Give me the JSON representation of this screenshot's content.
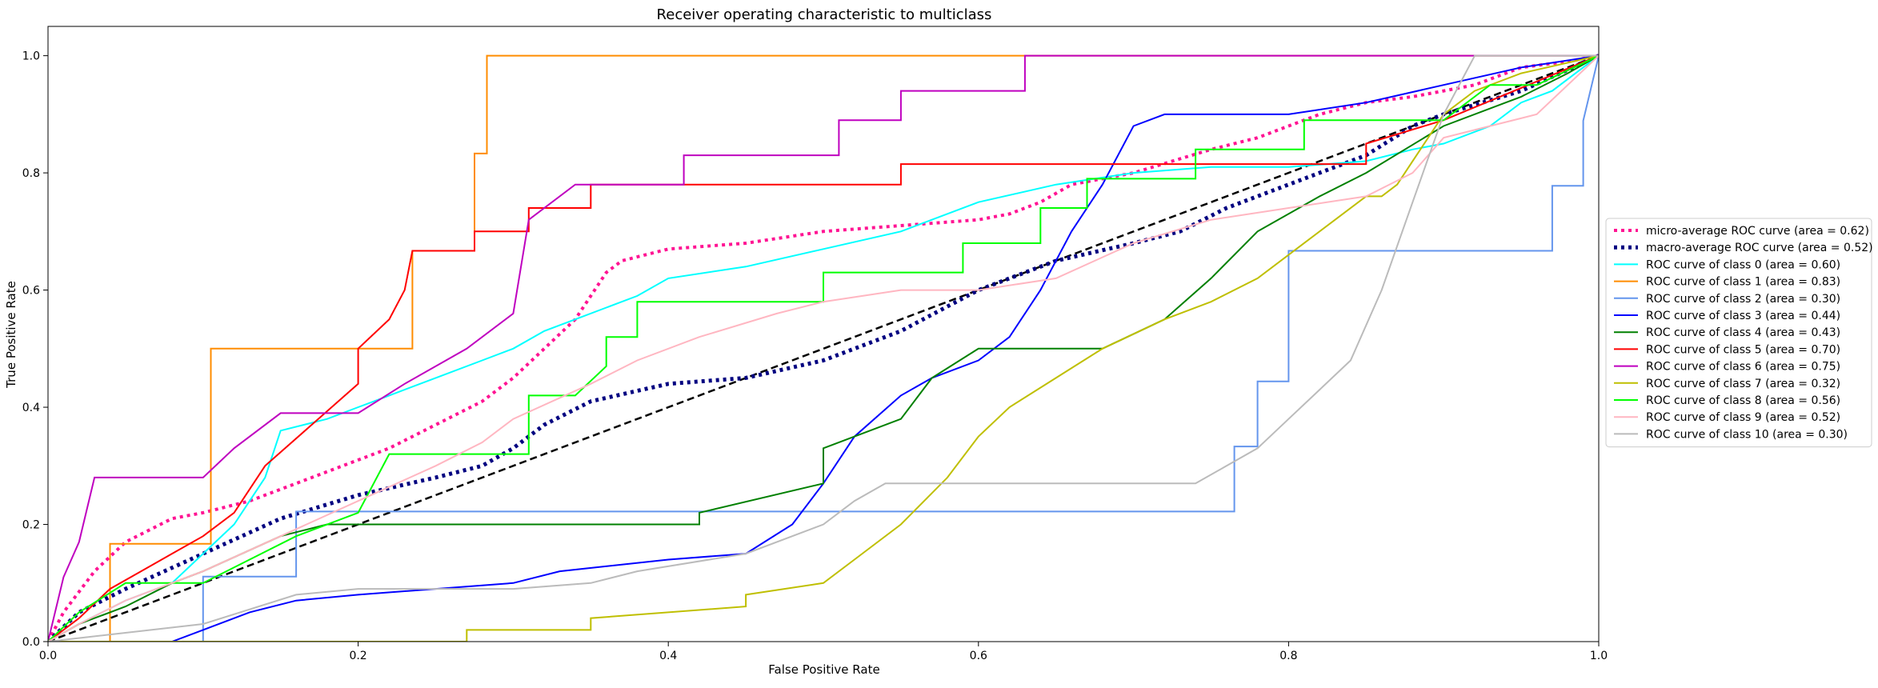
{
  "chart_data": {
    "type": "line",
    "title": "Receiver operating characteristic to multiclass",
    "xlabel": "False Positive Rate",
    "ylabel": "True Positive Rate",
    "xlim": [
      0.0,
      1.0
    ],
    "ylim": [
      0.0,
      1.05
    ],
    "x_ticks": [
      "0.0",
      "0.2",
      "0.4",
      "0.6",
      "0.8",
      "1.0"
    ],
    "y_ticks": [
      "0.0",
      "0.2",
      "0.4",
      "0.6",
      "0.8",
      "1.0"
    ],
    "grid": false,
    "legend_position": "center-right-outside",
    "chance_line": {
      "x": [
        0,
        1
      ],
      "y": [
        0,
        1
      ],
      "color": "#000000",
      "style": "dashed"
    },
    "series": [
      {
        "name": "micro-average ROC curve (area = 0.62)",
        "color": "#ff1493",
        "style": "dotted",
        "width": 4,
        "x": [
          0,
          0.01,
          0.03,
          0.05,
          0.08,
          0.1,
          0.13,
          0.16,
          0.19,
          0.22,
          0.25,
          0.28,
          0.3,
          0.32,
          0.34,
          0.36,
          0.37,
          0.4,
          0.45,
          0.5,
          0.55,
          0.6,
          0.62,
          0.64,
          0.66,
          0.7,
          0.75,
          0.78,
          0.8,
          0.82,
          0.85,
          0.88,
          0.9,
          0.92,
          0.95,
          0.98,
          1.0
        ],
        "y": [
          0,
          0.05,
          0.12,
          0.17,
          0.21,
          0.22,
          0.24,
          0.27,
          0.3,
          0.33,
          0.37,
          0.41,
          0.45,
          0.5,
          0.55,
          0.63,
          0.65,
          0.67,
          0.68,
          0.7,
          0.71,
          0.72,
          0.73,
          0.75,
          0.78,
          0.8,
          0.84,
          0.86,
          0.88,
          0.9,
          0.92,
          0.93,
          0.94,
          0.95,
          0.98,
          0.99,
          1.0
        ]
      },
      {
        "name": "macro-average ROC curve (area = 0.52)",
        "color": "#000080",
        "style": "dotted",
        "width": 5,
        "x": [
          0,
          0.02,
          0.05,
          0.1,
          0.15,
          0.2,
          0.25,
          0.28,
          0.3,
          0.32,
          0.35,
          0.4,
          0.45,
          0.5,
          0.55,
          0.6,
          0.65,
          0.7,
          0.73,
          0.76,
          0.8,
          0.85,
          0.88,
          0.9,
          0.95,
          1.0
        ],
        "y": [
          0,
          0.05,
          0.09,
          0.15,
          0.21,
          0.25,
          0.28,
          0.3,
          0.33,
          0.37,
          0.41,
          0.44,
          0.45,
          0.48,
          0.53,
          0.6,
          0.65,
          0.68,
          0.7,
          0.74,
          0.78,
          0.83,
          0.88,
          0.9,
          0.94,
          1.0
        ]
      },
      {
        "name": "ROC curve of class 0 (area = 0.60)",
        "color": "#00ffff",
        "style": "solid",
        "width": 2,
        "x": [
          0,
          0.02,
          0.05,
          0.08,
          0.1,
          0.12,
          0.14,
          0.15,
          0.18,
          0.2,
          0.22,
          0.25,
          0.28,
          0.3,
          0.32,
          0.34,
          0.36,
          0.38,
          0.4,
          0.45,
          0.5,
          0.55,
          0.6,
          0.65,
          0.7,
          0.75,
          0.8,
          0.85,
          0.88,
          0.9,
          0.93,
          0.95,
          0.97,
          1.0
        ],
        "y": [
          0,
          0.03,
          0.07,
          0.1,
          0.15,
          0.2,
          0.28,
          0.36,
          0.38,
          0.4,
          0.42,
          0.45,
          0.48,
          0.5,
          0.53,
          0.55,
          0.57,
          0.59,
          0.62,
          0.64,
          0.67,
          0.7,
          0.75,
          0.78,
          0.8,
          0.81,
          0.81,
          0.82,
          0.84,
          0.85,
          0.88,
          0.92,
          0.94,
          1.0
        ]
      },
      {
        "name": "ROC curve of class 1 (area = 0.83)",
        "color": "#ff8c00",
        "style": "solid",
        "width": 2,
        "x": [
          0,
          0.04,
          0.04,
          0.105,
          0.105,
          0.235,
          0.235,
          0.275,
          0.275,
          0.283,
          0.283,
          1.0
        ],
        "y": [
          0,
          0,
          0.167,
          0.167,
          0.5,
          0.5,
          0.667,
          0.667,
          0.833,
          0.833,
          1.0,
          1.0
        ]
      },
      {
        "name": "ROC curve of class 2 (area = 0.30)",
        "color": "#6495ed",
        "style": "solid",
        "width": 2,
        "x": [
          0,
          0.1,
          0.1,
          0.16,
          0.16,
          0.765,
          0.765,
          0.78,
          0.78,
          0.8,
          0.8,
          0.97,
          0.97,
          0.99,
          0.99,
          1.0
        ],
        "y": [
          0,
          0,
          0.111,
          0.111,
          0.222,
          0.222,
          0.333,
          0.333,
          0.444,
          0.444,
          0.667,
          0.667,
          0.778,
          0.778,
          0.889,
          1.0
        ]
      },
      {
        "name": "ROC curve of class 3 (area = 0.44)",
        "color": "#0000ff",
        "style": "solid",
        "width": 2,
        "x": [
          0,
          0.08,
          0.1,
          0.13,
          0.16,
          0.2,
          0.25,
          0.3,
          0.33,
          0.4,
          0.45,
          0.48,
          0.5,
          0.52,
          0.55,
          0.57,
          0.6,
          0.62,
          0.64,
          0.66,
          0.68,
          0.7,
          0.72,
          0.75,
          0.8,
          0.85,
          0.9,
          0.95,
          1.0
        ],
        "y": [
          0,
          0,
          0.02,
          0.05,
          0.07,
          0.08,
          0.09,
          0.1,
          0.12,
          0.14,
          0.15,
          0.2,
          0.27,
          0.35,
          0.42,
          0.45,
          0.48,
          0.52,
          0.6,
          0.7,
          0.78,
          0.88,
          0.9,
          0.9,
          0.9,
          0.92,
          0.95,
          0.98,
          1.0
        ]
      },
      {
        "name": "ROC curve of class 4 (area = 0.43)",
        "color": "#008000",
        "style": "solid",
        "width": 2,
        "x": [
          0,
          0.02,
          0.05,
          0.08,
          0.1,
          0.15,
          0.18,
          0.2,
          0.42,
          0.42,
          0.5,
          0.5,
          0.55,
          0.57,
          0.6,
          0.65,
          0.68,
          0.72,
          0.75,
          0.78,
          0.82,
          0.85,
          0.9,
          0.95,
          0.98,
          1.0
        ],
        "y": [
          0,
          0.03,
          0.06,
          0.1,
          0.12,
          0.18,
          0.2,
          0.2,
          0.2,
          0.22,
          0.27,
          0.33,
          0.38,
          0.45,
          0.5,
          0.5,
          0.5,
          0.55,
          0.62,
          0.7,
          0.76,
          0.8,
          0.88,
          0.93,
          0.97,
          1.0
        ]
      },
      {
        "name": "ROC curve of class 5 (area = 0.70)",
        "color": "#ff0000",
        "style": "solid",
        "width": 2,
        "x": [
          0,
          0.02,
          0.04,
          0.06,
          0.08,
          0.1,
          0.12,
          0.14,
          0.17,
          0.2,
          0.2,
          0.22,
          0.23,
          0.235,
          0.275,
          0.275,
          0.31,
          0.31,
          0.35,
          0.35,
          0.55,
          0.55,
          0.85,
          0.85,
          0.9,
          1.0
        ],
        "y": [
          0,
          0.04,
          0.09,
          0.12,
          0.15,
          0.18,
          0.22,
          0.3,
          0.37,
          0.44,
          0.5,
          0.55,
          0.6,
          0.667,
          0.667,
          0.7,
          0.7,
          0.74,
          0.74,
          0.78,
          0.78,
          0.815,
          0.815,
          0.85,
          0.89,
          1.0
        ]
      },
      {
        "name": "ROC curve of class 6 (area = 0.75)",
        "color": "#bf00bf",
        "style": "solid",
        "width": 2,
        "x": [
          0,
          0.01,
          0.02,
          0.03,
          0.05,
          0.1,
          0.12,
          0.15,
          0.2,
          0.23,
          0.27,
          0.3,
          0.31,
          0.34,
          0.41,
          0.41,
          0.51,
          0.51,
          0.55,
          0.55,
          0.63,
          0.63,
          0.87,
          0.87,
          0.9,
          1.0
        ],
        "y": [
          0,
          0.11,
          0.17,
          0.28,
          0.28,
          0.28,
          0.33,
          0.39,
          0.39,
          0.44,
          0.5,
          0.56,
          0.72,
          0.78,
          0.78,
          0.83,
          0.83,
          0.89,
          0.89,
          0.94,
          0.94,
          1.0,
          1.0,
          1.0,
          1.0,
          1.0
        ]
      },
      {
        "name": "ROC curve of class 7 (area = 0.32)",
        "color": "#bfbf00",
        "style": "solid",
        "width": 2,
        "x": [
          0,
          0.27,
          0.27,
          0.35,
          0.35,
          0.45,
          0.45,
          0.5,
          0.52,
          0.55,
          0.58,
          0.6,
          0.62,
          0.65,
          0.68,
          0.72,
          0.75,
          0.78,
          0.8,
          0.83,
          0.85,
          0.86,
          0.87,
          0.88,
          0.9,
          0.92,
          0.95,
          1.0
        ],
        "y": [
          0,
          0,
          0.02,
          0.02,
          0.04,
          0.06,
          0.08,
          0.1,
          0.14,
          0.2,
          0.28,
          0.35,
          0.4,
          0.45,
          0.5,
          0.55,
          0.58,
          0.62,
          0.66,
          0.72,
          0.76,
          0.76,
          0.78,
          0.82,
          0.9,
          0.94,
          0.97,
          1.0
        ]
      },
      {
        "name": "ROC curve of class 8 (area = 0.56)",
        "color": "#00ff00",
        "style": "solid",
        "width": 2,
        "x": [
          0,
          0.02,
          0.05,
          0.1,
          0.13,
          0.16,
          0.2,
          0.22,
          0.31,
          0.31,
          0.34,
          0.36,
          0.36,
          0.38,
          0.38,
          0.46,
          0.5,
          0.5,
          0.59,
          0.59,
          0.64,
          0.64,
          0.67,
          0.67,
          0.74,
          0.74,
          0.81,
          0.81,
          0.9,
          0.93,
          0.96,
          1.0
        ],
        "y": [
          0,
          0.05,
          0.1,
          0.1,
          0.14,
          0.18,
          0.22,
          0.32,
          0.32,
          0.42,
          0.42,
          0.47,
          0.52,
          0.52,
          0.58,
          0.58,
          0.58,
          0.63,
          0.63,
          0.68,
          0.68,
          0.74,
          0.74,
          0.79,
          0.79,
          0.84,
          0.84,
          0.89,
          0.89,
          0.95,
          0.95,
          1.0
        ]
      },
      {
        "name": "ROC curve of class 9 (area = 0.52)",
        "color": "#ffb6c1",
        "style": "solid",
        "width": 2,
        "x": [
          0,
          0.02,
          0.05,
          0.1,
          0.15,
          0.2,
          0.25,
          0.28,
          0.3,
          0.35,
          0.38,
          0.42,
          0.47,
          0.5,
          0.55,
          0.6,
          0.65,
          0.7,
          0.75,
          0.8,
          0.85,
          0.88,
          0.9,
          0.93,
          0.96,
          1.0
        ],
        "y": [
          0,
          0.03,
          0.07,
          0.12,
          0.18,
          0.24,
          0.3,
          0.34,
          0.38,
          0.44,
          0.48,
          0.52,
          0.56,
          0.58,
          0.6,
          0.6,
          0.62,
          0.68,
          0.72,
          0.74,
          0.76,
          0.8,
          0.86,
          0.88,
          0.9,
          1.0
        ]
      },
      {
        "name": "ROC curve of class 10 (area = 0.30)",
        "color": "#bbbbbb",
        "style": "solid",
        "width": 2,
        "x": [
          0,
          0.1,
          0.16,
          0.2,
          0.3,
          0.35,
          0.38,
          0.45,
          0.5,
          0.52,
          0.54,
          0.56,
          0.6,
          0.65,
          0.7,
          0.74,
          0.76,
          0.78,
          0.8,
          0.82,
          0.84,
          0.86,
          0.88,
          0.9,
          0.92,
          1.0
        ],
        "y": [
          0,
          0.03,
          0.08,
          0.09,
          0.09,
          0.1,
          0.12,
          0.15,
          0.2,
          0.24,
          0.27,
          0.27,
          0.27,
          0.27,
          0.27,
          0.27,
          0.3,
          0.33,
          0.38,
          0.43,
          0.48,
          0.6,
          0.75,
          0.9,
          1.0,
          1.0
        ]
      }
    ]
  }
}
